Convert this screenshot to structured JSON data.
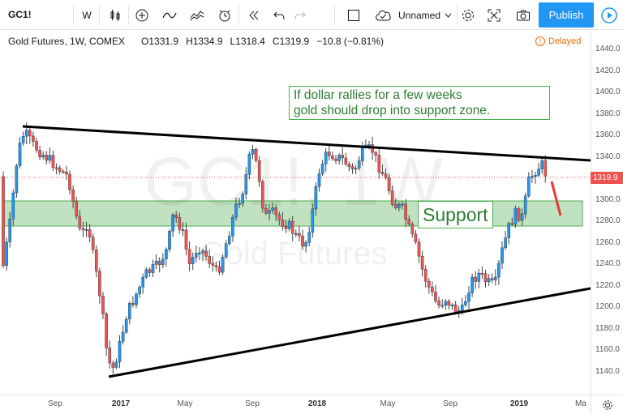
{
  "toolbar": {
    "symbol": "GC1!",
    "interval": "W",
    "layout_name": "Unnamed",
    "publish_label": "Publish"
  },
  "legend": {
    "title": "Gold Futures, 1W, COMEX",
    "open": "O1331.9",
    "high": "H1334.9",
    "low": "L1318.4",
    "close": "C1319.9",
    "change": "−10.8 (−0.81%)",
    "delayed": "Delayed"
  },
  "watermark": {
    "symbol": "GC1!, 1W",
    "name": "Gold Futures"
  },
  "annotations": {
    "note_line1": "If dollar rallies for a few weeks",
    "note_line2": "gold should drop into support zone.",
    "support": "Support"
  },
  "price_axis": {
    "ticks": [
      "1440.0",
      "1420.0",
      "1400.0",
      "1380.0",
      "1360.0",
      "1340.0",
      "1320.0",
      "1300.0",
      "1280.0",
      "1260.0",
      "1240.0",
      "1220.0",
      "1200.0",
      "1180.0",
      "1160.0",
      "1140.0"
    ],
    "last_price": "1319.9"
  },
  "time_axis": {
    "ticks": [
      {
        "label": "Sep",
        "bold": false
      },
      {
        "label": "2017",
        "bold": true
      },
      {
        "label": "May",
        "bold": false
      },
      {
        "label": "Sep",
        "bold": false
      },
      {
        "label": "2018",
        "bold": true
      },
      {
        "label": "May",
        "bold": false
      },
      {
        "label": "Sep",
        "bold": false
      },
      {
        "label": "2019",
        "bold": true
      },
      {
        "label": "Ma",
        "bold": false
      }
    ]
  },
  "colors": {
    "up": "#2196f3",
    "down": "#ef5350",
    "support_zone": "#a5d6a7",
    "accent": "#2196f3"
  },
  "icons": [
    "intervals-icon",
    "candles-icon",
    "add-indicator-icon",
    "line-tools-icon",
    "compare-icon",
    "alert-icon",
    "replay-icon",
    "undo-icon",
    "redo-icon",
    "fullscreen-icon",
    "cloud-save-icon",
    "settings-icon",
    "expand-icon",
    "snapshot-icon",
    "play-icon"
  ]
}
